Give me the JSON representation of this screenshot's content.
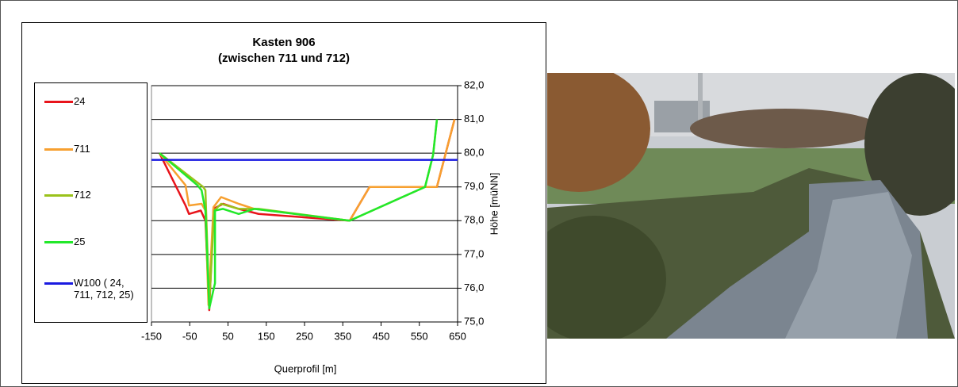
{
  "chart_data": {
    "type": "line",
    "title": "Kasten 906",
    "subtitle": "(zwischen 711 und 712)",
    "x_label": "Querprofil [m]",
    "y_label": "Höhe [müNN]",
    "xlim": [
      -150,
      650
    ],
    "xticks": [
      -150,
      -50,
      50,
      150,
      250,
      350,
      450,
      550,
      650
    ],
    "ylim": [
      75,
      82
    ],
    "yticks": [
      {
        "value": 75,
        "label": "75,0"
      },
      {
        "value": 76,
        "label": "76,0"
      },
      {
        "value": 77,
        "label": "77,0"
      },
      {
        "value": 78,
        "label": "78,0"
      },
      {
        "value": 79,
        "label": "79,0"
      },
      {
        "value": 80,
        "label": "80,0"
      },
      {
        "value": 81,
        "label": "81,0"
      },
      {
        "value": 82,
        "label": "82,0"
      }
    ],
    "grid": true,
    "legend": "left",
    "series": [
      {
        "name": "24",
        "color": "#e8141b",
        "x": [
          -129,
          -61,
          -52,
          -21,
          -9,
          1,
          12,
          37,
          78,
          130,
          368,
          420,
          555,
          596,
          642
        ],
        "values": [
          80.0,
          78.45,
          78.2,
          78.3,
          78.0,
          75.35,
          78.35,
          78.5,
          78.35,
          78.2,
          78.0,
          79.0,
          79.0,
          79.0,
          81.0
        ]
      },
      {
        "name": "711",
        "color": "#f7a030",
        "x": [
          -129,
          -61,
          -52,
          -19,
          -9,
          -1,
          12,
          32,
          78,
          119,
          368,
          420,
          596,
          642
        ],
        "values": [
          80.0,
          79.05,
          78.45,
          78.5,
          78.3,
          75.5,
          78.4,
          78.7,
          78.5,
          78.35,
          78.0,
          79.0,
          79.0,
          81.0
        ]
      },
      {
        "name": "712",
        "color": "#9ac21b",
        "x": [
          -129,
          -15,
          -9,
          1,
          14,
          32,
          78,
          130,
          368,
          565,
          586,
          596
        ],
        "values": [
          80.0,
          79.0,
          78.9,
          75.5,
          78.3,
          78.5,
          78.35,
          78.35,
          78.0,
          79.0,
          79.95,
          81.0
        ]
      },
      {
        "name": "25",
        "color": "#22e82a",
        "x": [
          -129,
          -30,
          -19,
          -9,
          1,
          16,
          16,
          37,
          78,
          119,
          368,
          565,
          586,
          596
        ],
        "values": [
          80.0,
          79.05,
          78.9,
          78.3,
          75.4,
          76.15,
          78.3,
          78.35,
          78.2,
          78.35,
          78.0,
          79.0,
          79.95,
          81.0
        ]
      },
      {
        "name": "W100 ( 24, 711, 712, 25)",
        "color": "#1a1ae0",
        "x": [
          -150,
          650
        ],
        "values": [
          79.8,
          79.8
        ]
      }
    ]
  }
}
